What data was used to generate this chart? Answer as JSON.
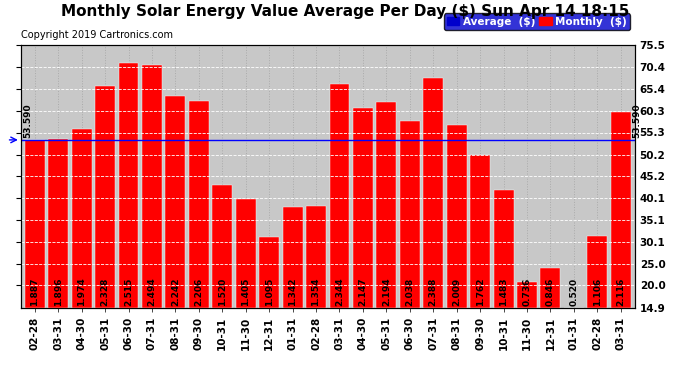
{
  "title": "Monthly Solar Energy Value Average Per Day ($) Sun Apr 14 18:15",
  "copyright": "Copyright 2019 Cartronics.com",
  "categories": [
    "02-28",
    "03-31",
    "04-30",
    "05-31",
    "06-30",
    "07-31",
    "08-31",
    "09-30",
    "10-31",
    "11-30",
    "12-31",
    "01-31",
    "02-28",
    "03-31",
    "04-30",
    "05-31",
    "06-30",
    "07-31",
    "08-31",
    "09-30",
    "10-31",
    "11-30",
    "12-31",
    "01-31",
    "02-28",
    "03-31"
  ],
  "bar_labels": [
    "1.887",
    "1.896",
    "1.974",
    "2.328",
    "2.515",
    "2.494",
    "2.242",
    "2.206",
    "1.520",
    "1.405",
    "1.095",
    "1.342",
    "1.354",
    "2.344",
    "2.147",
    "2.194",
    "2.038",
    "2.388",
    "2.009",
    "1.762",
    "1.483",
    "0.736",
    "0.846",
    "0.520",
    "1.106",
    "2.116"
  ],
  "dollar_values": [
    53.59,
    53.84,
    56.04,
    66.12,
    71.43,
    70.83,
    63.66,
    62.64,
    43.17,
    39.9,
    31.09,
    38.1,
    38.44,
    66.58,
    60.98,
    62.31,
    57.86,
    67.82,
    57.06,
    50.05,
    42.12,
    20.9,
    24.03,
    14.77,
    31.41,
    60.09
  ],
  "bar_color": "#ff0000",
  "average_value": 53.59,
  "average_line_color": "#0000ff",
  "ylim": [
    14.9,
    75.5
  ],
  "yticks": [
    20.0,
    25.0,
    30.1,
    35.1,
    40.1,
    45.2,
    50.2,
    55.3,
    60.3,
    65.4,
    70.4,
    75.5
  ],
  "right_ytick_labels": [
    "14.9",
    "20.0",
    "25.0",
    "30.1",
    "35.1",
    "40.1",
    "45.2",
    "50.2",
    "55.3",
    "60.3",
    "65.4",
    "70.4",
    "75.5"
  ],
  "right_ytick_vals": [
    14.9,
    20.0,
    25.0,
    30.1,
    35.1,
    40.1,
    45.2,
    50.2,
    55.3,
    60.3,
    65.4,
    70.4,
    75.5
  ],
  "background_color": "#c8c8c8",
  "title_fontsize": 11,
  "copyright_fontsize": 7,
  "bar_label_fontsize": 6.5,
  "tick_fontsize": 7.5,
  "legend_avg_color": "#0000cc",
  "legend_monthly_color": "#ff0000",
  "legend_text_avg": "Average  ($)",
  "legend_text_monthly": "Monthly  ($)",
  "average_label": "53.590",
  "bar_bottom": 14.9
}
